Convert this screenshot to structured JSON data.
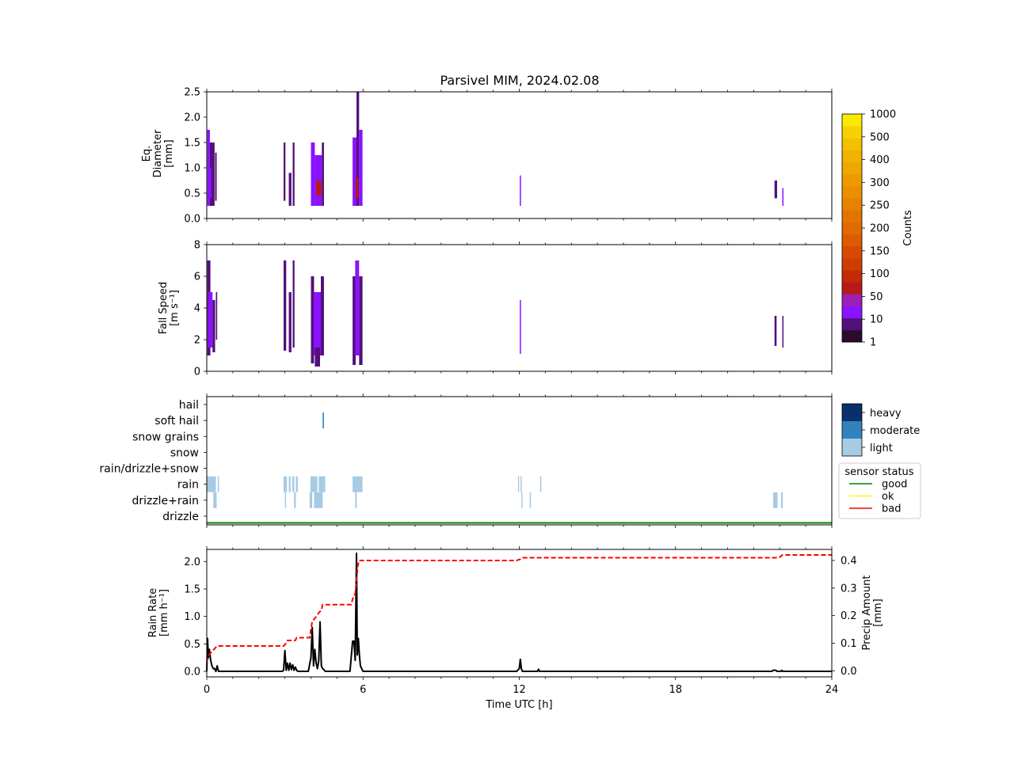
{
  "title": "Parsivel MIM, 2024.02.08",
  "chart_data": [
    {
      "type": "heatmap",
      "panel": "diameter",
      "ylabel_lines": [
        "Eq.",
        "Diameter",
        "[mm]"
      ],
      "xlim": [
        0,
        24
      ],
      "ylim": [
        0,
        2.5
      ],
      "yticks": [
        "0.0",
        "0.5",
        "1.0",
        "1.5",
        "2.0",
        "2.5"
      ],
      "colorbar": {
        "label": "Counts",
        "ticks": [
          "1",
          "10",
          "50",
          "100",
          "150",
          "200",
          "250",
          "300",
          "400",
          "500",
          "1000"
        ],
        "colors": [
          "#2d0a2e",
          "#52107a",
          "#8a12ff",
          "#9b1fb8",
          "#b81a1a",
          "#c42a05",
          "#cf3c00",
          "#d54a00",
          "#db5c00",
          "#e06a00",
          "#e37400",
          "#e68200",
          "#e98f00",
          "#eb9b00",
          "#eea700",
          "#f0b300",
          "#f3c100",
          "#f6d200",
          "#fae900"
        ]
      },
      "blocks": [
        {
          "t0": 0.02,
          "t1": 0.12,
          "d0": 0.25,
          "d1": 1.75,
          "level": 2
        },
        {
          "t0": 0.12,
          "t1": 0.3,
          "d0": 0.25,
          "d1": 1.5,
          "level": 1
        },
        {
          "t0": 0.05,
          "t1": 0.18,
          "d0": 0.4,
          "d1": 1.0,
          "level": 2
        },
        {
          "t0": 0.32,
          "t1": 0.38,
          "d0": 0.35,
          "d1": 1.3,
          "level": 1
        },
        {
          "t0": 2.95,
          "t1": 3.02,
          "d0": 0.35,
          "d1": 1.5,
          "level": 1
        },
        {
          "t0": 3.15,
          "t1": 3.25,
          "d0": 0.25,
          "d1": 0.9,
          "level": 1
        },
        {
          "t0": 3.3,
          "t1": 3.37,
          "d0": 0.25,
          "d1": 1.5,
          "level": 1
        },
        {
          "t0": 4.0,
          "t1": 4.15,
          "d0": 0.25,
          "d1": 1.5,
          "level": 2
        },
        {
          "t0": 4.15,
          "t1": 4.42,
          "d0": 0.25,
          "d1": 1.25,
          "level": 2
        },
        {
          "t0": 4.2,
          "t1": 4.4,
          "d0": 0.45,
          "d1": 0.75,
          "level": 4
        },
        {
          "t0": 4.42,
          "t1": 4.5,
          "d0": 0.25,
          "d1": 1.5,
          "level": 1
        },
        {
          "t0": 5.6,
          "t1": 5.75,
          "d0": 0.25,
          "d1": 1.6,
          "level": 2
        },
        {
          "t0": 5.75,
          "t1": 5.85,
          "d0": 0.25,
          "d1": 2.5,
          "level": 1
        },
        {
          "t0": 5.85,
          "t1": 5.98,
          "d0": 0.25,
          "d1": 1.75,
          "level": 2
        },
        {
          "t0": 5.72,
          "t1": 5.82,
          "d0": 0.4,
          "d1": 0.8,
          "level": 4
        },
        {
          "t0": 12.02,
          "t1": 12.06,
          "d0": 0.25,
          "d1": 0.85,
          "level": 2
        },
        {
          "t0": 21.8,
          "t1": 21.9,
          "d0": 0.4,
          "d1": 0.75,
          "level": 1
        },
        {
          "t0": 22.1,
          "t1": 22.14,
          "d0": 0.25,
          "d1": 0.6,
          "level": 2
        }
      ]
    },
    {
      "type": "heatmap",
      "panel": "fall_speed",
      "ylabel_lines": [
        "Fall Speed",
        "[m s⁻¹]"
      ],
      "xlim": [
        0,
        24
      ],
      "ylim": [
        0,
        8
      ],
      "yticks": [
        "0",
        "2",
        "4",
        "6",
        "8"
      ],
      "blocks": [
        {
          "t0": 0.02,
          "t1": 0.14,
          "d0": 1.0,
          "d1": 7.0,
          "level": 1
        },
        {
          "t0": 0.05,
          "t1": 0.22,
          "d0": 1.5,
          "d1": 5.0,
          "level": 2
        },
        {
          "t0": 0.22,
          "t1": 0.32,
          "d0": 1.2,
          "d1": 4.5,
          "level": 1
        },
        {
          "t0": 0.35,
          "t1": 0.4,
          "d0": 2.0,
          "d1": 5.0,
          "level": 1
        },
        {
          "t0": 2.95,
          "t1": 3.05,
          "d0": 1.3,
          "d1": 7.0,
          "level": 1
        },
        {
          "t0": 3.15,
          "t1": 3.25,
          "d0": 1.2,
          "d1": 5.0,
          "level": 1
        },
        {
          "t0": 3.3,
          "t1": 3.37,
          "d0": 1.5,
          "d1": 7.0,
          "level": 1
        },
        {
          "t0": 4.0,
          "t1": 4.12,
          "d0": 0.5,
          "d1": 6.0,
          "level": 1
        },
        {
          "t0": 4.1,
          "t1": 4.38,
          "d0": 1.0,
          "d1": 5.0,
          "level": 2
        },
        {
          "t0": 4.15,
          "t1": 4.35,
          "d0": 0.3,
          "d1": 1.5,
          "level": 1
        },
        {
          "t0": 4.38,
          "t1": 4.5,
          "d0": 1.0,
          "d1": 6.0,
          "level": 1
        },
        {
          "t0": 5.6,
          "t1": 5.72,
          "d0": 0.4,
          "d1": 6.0,
          "level": 1
        },
        {
          "t0": 5.7,
          "t1": 5.85,
          "d0": 1.0,
          "d1": 7.0,
          "level": 2
        },
        {
          "t0": 5.85,
          "t1": 5.98,
          "d0": 0.4,
          "d1": 6.0,
          "level": 1
        },
        {
          "t0": 12.02,
          "t1": 12.06,
          "d0": 1.1,
          "d1": 4.5,
          "level": 2
        },
        {
          "t0": 21.8,
          "t1": 21.88,
          "d0": 1.6,
          "d1": 3.5,
          "level": 1
        },
        {
          "t0": 22.1,
          "t1": 22.13,
          "d0": 1.5,
          "d1": 3.5,
          "level": 1
        }
      ]
    },
    {
      "type": "heatmap",
      "panel": "precip_type",
      "xlim": [
        0,
        24
      ],
      "categories": [
        "drizzle",
        "drizzle+rain",
        "rain",
        "rain/drizzle+snow",
        "snow",
        "snow grains",
        "soft hail",
        "hail"
      ],
      "intensity_legend": [
        "heavy",
        "moderate",
        "light"
      ],
      "intensity_colors": [
        "#08306b",
        "#3182bd",
        "#a6cbe3"
      ],
      "status_legend": {
        "title": "sensor status",
        "entries": [
          {
            "label": "good",
            "color": "#008000"
          },
          {
            "label": "ok",
            "color": "#ffff00"
          },
          {
            "label": "bad",
            "color": "#ff0000"
          }
        ]
      },
      "status_series": {
        "value": "good",
        "t0": 0,
        "t1": 24
      },
      "events": [
        {
          "category": "rain",
          "t0": 0.0,
          "t1": 0.35,
          "intensity": "light"
        },
        {
          "category": "rain",
          "t0": 0.42,
          "t1": 0.47,
          "intensity": "light"
        },
        {
          "category": "drizzle+rain",
          "t0": 0.25,
          "t1": 0.38,
          "intensity": "light"
        },
        {
          "category": "rain",
          "t0": 2.95,
          "t1": 3.08,
          "intensity": "light"
        },
        {
          "category": "rain",
          "t0": 3.15,
          "t1": 3.22,
          "intensity": "light"
        },
        {
          "category": "rain",
          "t0": 3.28,
          "t1": 3.36,
          "intensity": "light"
        },
        {
          "category": "rain",
          "t0": 3.42,
          "t1": 3.5,
          "intensity": "light"
        },
        {
          "category": "drizzle+rain",
          "t0": 3.0,
          "t1": 3.04,
          "intensity": "light"
        },
        {
          "category": "drizzle+rain",
          "t0": 3.35,
          "t1": 3.42,
          "intensity": "light"
        },
        {
          "category": "rain",
          "t0": 3.98,
          "t1": 4.25,
          "intensity": "light"
        },
        {
          "category": "rain",
          "t0": 4.3,
          "t1": 4.55,
          "intensity": "light"
        },
        {
          "category": "drizzle+rain",
          "t0": 3.95,
          "t1": 4.05,
          "intensity": "light"
        },
        {
          "category": "drizzle+rain",
          "t0": 4.12,
          "t1": 4.45,
          "intensity": "light"
        },
        {
          "category": "soft hail",
          "t0": 4.45,
          "t1": 4.5,
          "intensity": "moderate"
        },
        {
          "category": "rain",
          "t0": 5.6,
          "t1": 5.98,
          "intensity": "light"
        },
        {
          "category": "drizzle+rain",
          "t0": 5.7,
          "t1": 5.76,
          "intensity": "light"
        },
        {
          "category": "rain",
          "t0": 11.95,
          "t1": 11.98,
          "intensity": "light"
        },
        {
          "category": "rain",
          "t0": 12.05,
          "t1": 12.08,
          "intensity": "light"
        },
        {
          "category": "drizzle+rain",
          "t0": 12.08,
          "t1": 12.12,
          "intensity": "light"
        },
        {
          "category": "drizzle+rain",
          "t0": 12.4,
          "t1": 12.44,
          "intensity": "light"
        },
        {
          "category": "rain",
          "t0": 12.8,
          "t1": 12.84,
          "intensity": "light"
        },
        {
          "category": "drizzle+rain",
          "t0": 21.75,
          "t1": 21.92,
          "intensity": "light"
        },
        {
          "category": "drizzle+rain",
          "t0": 22.05,
          "t1": 22.12,
          "intensity": "light"
        }
      ]
    },
    {
      "type": "line",
      "panel": "rain_rate",
      "xlabel": "Time UTC [h]",
      "ylabel_lines": [
        "Rain Rate",
        "[mm h⁻¹]"
      ],
      "y2label_lines": [
        "Precip Amount",
        "[mm]"
      ],
      "xlim": [
        0,
        24
      ],
      "xticks": [
        "0",
        "6",
        "12",
        "18",
        "24"
      ],
      "ylim": [
        -0.1,
        2.22
      ],
      "yticks": [
        "0.0",
        "0.5",
        "1.0",
        "1.5",
        "2.0"
      ],
      "y2lim": [
        -0.022,
        0.44
      ],
      "y2ticks": [
        "0.0",
        "0.1",
        "0.2",
        "0.3",
        "0.4"
      ],
      "series": [
        {
          "key": "rain_rate",
          "color": "#000000",
          "style": "solid",
          "axis": "left",
          "x": [
            0,
            0.03,
            0.06,
            0.1,
            0.15,
            0.2,
            0.25,
            0.3,
            0.35,
            0.4,
            0.45,
            0.5,
            2.9,
            2.95,
            3.0,
            3.05,
            3.1,
            3.15,
            3.2,
            3.25,
            3.3,
            3.35,
            3.4,
            3.45,
            3.5,
            3.9,
            4.0,
            4.05,
            4.1,
            4.15,
            4.2,
            4.25,
            4.3,
            4.35,
            4.4,
            4.45,
            4.5,
            4.55,
            5.5,
            5.6,
            5.65,
            5.7,
            5.75,
            5.78,
            5.82,
            5.86,
            5.9,
            6.0,
            11.9,
            12.0,
            12.04,
            12.08,
            12.12,
            12.5,
            12.7,
            12.74,
            12.78,
            21.7,
            21.75,
            21.85,
            21.9,
            22.05,
            22.08,
            22.12,
            24
          ],
          "y": [
            0,
            0.6,
            0.25,
            0.4,
            0.2,
            0.1,
            0.05,
            0.05,
            0,
            0.1,
            0,
            0,
            0,
            0.02,
            0.38,
            0.02,
            0.15,
            0.02,
            0.15,
            0.03,
            0.12,
            0.02,
            0.08,
            0.02,
            0,
            0,
            0.25,
            0.8,
            0.1,
            0.4,
            0.15,
            0.05,
            0.2,
            0.9,
            0.1,
            0.05,
            0.03,
            0,
            0,
            0.55,
            0.55,
            0.2,
            2.15,
            0.3,
            0.6,
            0.3,
            0.1,
            0,
            0,
            0.05,
            0.22,
            0.05,
            0,
            0,
            0,
            0.04,
            0,
            0,
            0.02,
            0.02,
            0,
            0,
            0.02,
            0,
            0
          ]
        },
        {
          "key": "precip_amount",
          "color": "#ff0000",
          "style": "dashed",
          "axis": "right",
          "x": [
            0,
            0.05,
            0.1,
            0.2,
            0.3,
            0.4,
            2.95,
            3.05,
            3.1,
            3.4,
            3.45,
            3.95,
            4.0,
            4.05,
            4.15,
            4.3,
            4.4,
            4.45,
            5.55,
            5.6,
            5.7,
            5.75,
            5.8,
            5.85,
            11.9,
            12.05,
            12.1,
            21.95,
            22.05,
            22.1,
            24
          ],
          "y": [
            0.03,
            0.05,
            0.06,
            0.07,
            0.08,
            0.09,
            0.09,
            0.1,
            0.11,
            0.11,
            0.12,
            0.12,
            0.15,
            0.18,
            0.19,
            0.21,
            0.22,
            0.24,
            0.24,
            0.26,
            0.28,
            0.33,
            0.38,
            0.4,
            0.4,
            0.405,
            0.41,
            0.41,
            0.415,
            0.42,
            0.42
          ]
        }
      ]
    }
  ]
}
